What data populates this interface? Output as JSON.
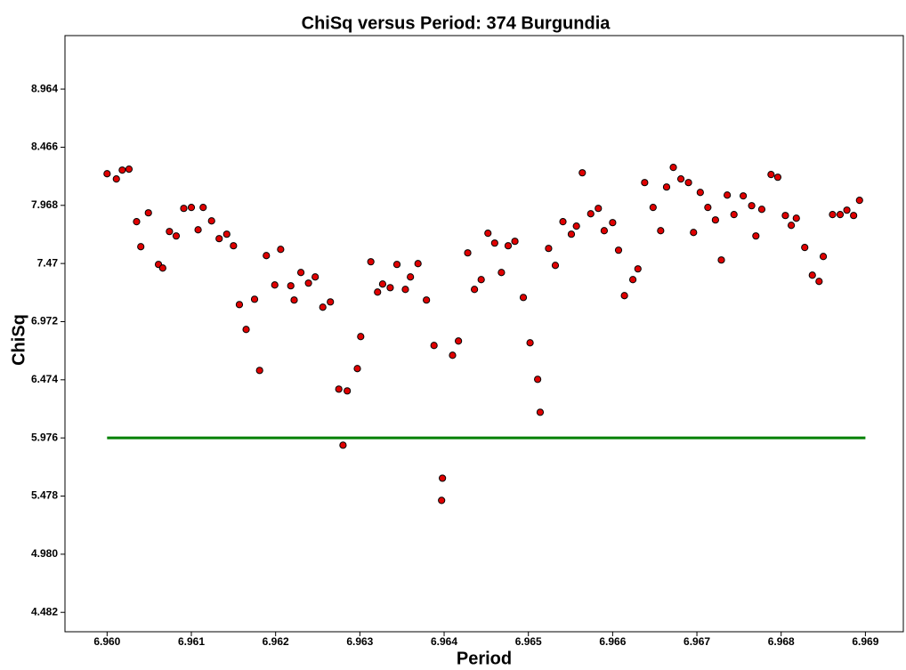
{
  "chart_data": {
    "type": "scatter",
    "title": "ChiSq versus Period: 374 Burgundia",
    "x_label": "Period",
    "y_label": "ChiSq",
    "xlim": [
      6.9595,
      6.96945
    ],
    "ylim": [
      4.316,
      9.422
    ],
    "xticks": [
      {
        "value": 6.96,
        "label": "6.960"
      },
      {
        "value": 6.961,
        "label": "6.961"
      },
      {
        "value": 6.962,
        "label": "6.962"
      },
      {
        "value": 6.963,
        "label": "6.963"
      },
      {
        "value": 6.964,
        "label": "6.964"
      },
      {
        "value": 6.965,
        "label": "6.965"
      },
      {
        "value": 6.966,
        "label": "6.966"
      },
      {
        "value": 6.967,
        "label": "6.967"
      },
      {
        "value": 6.968,
        "label": "6.968"
      },
      {
        "value": 6.969,
        "label": "6.969"
      }
    ],
    "yticks": [
      4.482,
      {
        "value": 4.98,
        "label": "4.980"
      },
      5.478,
      5.976,
      6.474,
      6.972,
      7.47,
      7.968,
      8.466,
      8.964
    ],
    "reference_line": {
      "x": [
        6.96,
        6.969
      ],
      "y": [
        5.976,
        5.976
      ],
      "color": "#008000"
    },
    "series": [
      {
        "color": "#e00000",
        "x": [
          6.96,
          6.96011,
          6.96018,
          6.96026,
          6.96035,
          6.9604,
          6.96049,
          6.96061,
          6.96066,
          6.96074,
          6.96082,
          6.96091,
          6.961,
          6.96108,
          6.96114,
          6.96124,
          6.96133,
          6.96142,
          6.9615,
          6.96157,
          6.96165,
          6.96175,
          6.96181,
          6.96189,
          6.96199,
          6.96206,
          6.96218,
          6.96222,
          6.9623,
          6.96239,
          6.96247,
          6.96256,
          6.96265,
          6.96275,
          6.9628,
          6.96285,
          6.96297,
          6.96301,
          6.96313,
          6.96321,
          6.96327,
          6.96336,
          6.96344,
          6.96354,
          6.9636,
          6.96369,
          6.96379,
          6.96388,
          6.96398,
          6.96397,
          6.9641,
          6.96417,
          6.96428,
          6.96436,
          6.96444,
          6.96452,
          6.9646,
          6.96468,
          6.96476,
          6.96484,
          6.96494,
          6.96502,
          6.96511,
          6.96514,
          6.96524,
          6.96532,
          6.96541,
          6.96551,
          6.96557,
          6.96564,
          6.96574,
          6.96583,
          6.9659,
          6.966,
          6.96607,
          6.96614,
          6.96624,
          6.9663,
          6.96638,
          6.96648,
          6.96657,
          6.96664,
          6.96672,
          6.96681,
          6.9669,
          6.96696,
          6.96704,
          6.96713,
          6.96722,
          6.96729,
          6.96736,
          6.96744,
          6.96755,
          6.96765,
          6.9677,
          6.96777,
          6.96788,
          6.96796,
          6.96805,
          6.96812,
          6.96818,
          6.96828,
          6.96837,
          6.96845,
          6.9685,
          6.96861,
          6.9687,
          6.96878,
          6.96886,
          6.96893
        ],
        "values": [
          8.239,
          8.194,
          8.27,
          8.278,
          7.828,
          7.614,
          7.904,
          7.462,
          7.431,
          7.744,
          7.706,
          7.942,
          7.95,
          7.759,
          7.95,
          7.835,
          7.683,
          7.721,
          7.622,
          7.118,
          6.905,
          7.164,
          6.554,
          7.538,
          7.286,
          7.591,
          7.279,
          7.157,
          7.393,
          7.302,
          7.355,
          7.096,
          7.141,
          6.394,
          5.914,
          6.379,
          6.57,
          6.844,
          7.485,
          7.225,
          7.294,
          7.263,
          7.462,
          7.248,
          7.355,
          7.469,
          7.157,
          6.768,
          5.631,
          5.441,
          6.684,
          6.806,
          7.561,
          7.248,
          7.332,
          7.729,
          7.645,
          7.393,
          7.622,
          7.66,
          7.179,
          6.791,
          6.478,
          6.196,
          7.599,
          7.454,
          7.828,
          7.721,
          7.79,
          8.247,
          7.896,
          7.942,
          7.751,
          7.82,
          7.584,
          7.195,
          7.332,
          7.424,
          8.163,
          7.95,
          7.751,
          8.125,
          8.293,
          8.194,
          8.163,
          7.736,
          8.079,
          7.95,
          7.843,
          7.5,
          8.056,
          7.889,
          8.049,
          7.965,
          7.706,
          7.934,
          8.232,
          8.209,
          7.881,
          7.797,
          7.858,
          7.607,
          7.37,
          7.317,
          7.53,
          7.889,
          7.889,
          7.927,
          7.881,
          8.011
        ]
      }
    ]
  }
}
